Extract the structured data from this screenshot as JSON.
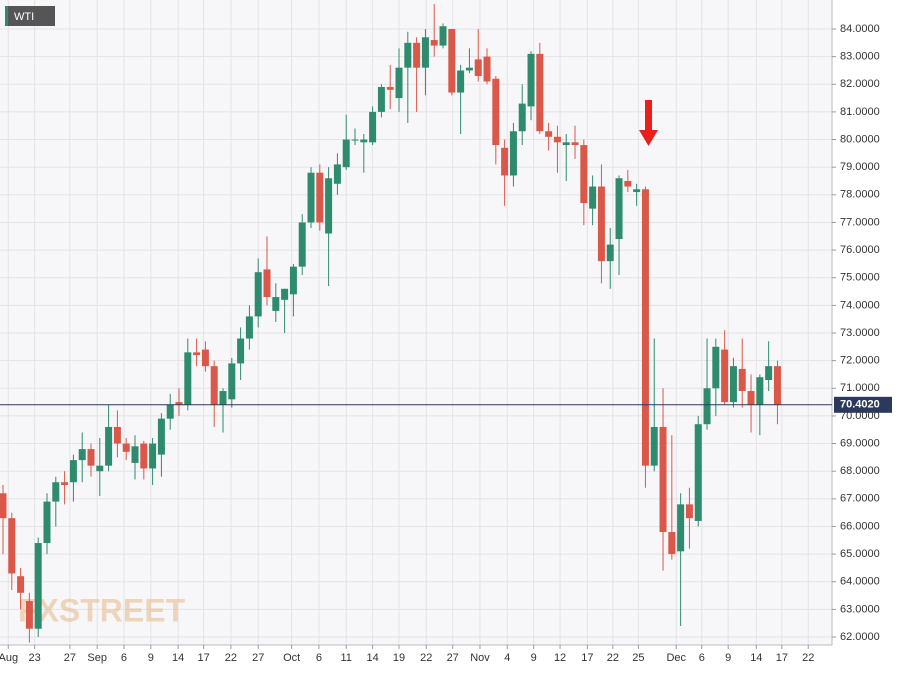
{
  "chart_data": {
    "type": "candlestick",
    "title": "WTI",
    "watermark": "FXSTREET",
    "up_color": "#2e8b6e",
    "down_color": "#d9584a",
    "series": {
      "open": [
        67.2,
        66.3,
        64.2,
        63.3,
        62.3,
        65.4,
        66.9,
        67.6,
        67.6,
        68.4,
        68.8,
        68.0,
        68.2,
        69.6,
        69.0,
        68.3,
        69.0,
        68.1,
        68.6,
        69.9,
        70.5,
        70.4,
        72.3,
        72.4,
        71.8,
        70.4,
        70.6,
        71.9,
        72.8,
        73.6,
        75.3,
        73.8,
        74.2,
        74.4,
        75.4,
        77.0,
        78.8,
        76.6,
        78.4,
        79.0,
        80.0,
        79.9,
        79.9,
        81.0,
        81.9,
        81.5,
        82.6,
        83.5,
        82.6,
        83.6,
        83.4,
        84.0,
        81.7,
        82.5,
        82.9,
        83.0,
        82.2,
        79.7,
        78.7,
        80.3,
        81.2,
        83.1,
        80.3,
        80.1,
        79.8,
        79.9,
        79.8,
        77.5,
        78.3,
        75.6,
        76.4,
        78.5,
        78.1,
        78.2,
        68.2,
        69.6,
        65.8,
        65.1,
        66.8,
        66.2,
        69.7,
        71.0,
        72.4,
        70.5,
        71.7,
        70.9,
        70.4,
        71.3,
        71.8
      ],
      "high": [
        67.5,
        66.5,
        64.5,
        63.6,
        65.6,
        67.2,
        67.8,
        68.0,
        68.6,
        69.4,
        69.0,
        69.2,
        70.4,
        70.2,
        69.2,
        69.3,
        69.1,
        69.2,
        70.1,
        70.8,
        71.0,
        72.8,
        72.8,
        72.7,
        72.0,
        71.0,
        72.1,
        73.2,
        74.0,
        75.7,
        76.5,
        74.8,
        74.6,
        75.5,
        77.3,
        79.0,
        79.1,
        79.0,
        79.5,
        80.9,
        80.4,
        80.2,
        81.2,
        82.0,
        82.7,
        83.3,
        83.9,
        83.7,
        84.0,
        84.9,
        84.2,
        84.0,
        82.7,
        83.3,
        84.0,
        83.3,
        82.3,
        80.0,
        80.6,
        82.0,
        83.2,
        83.5,
        80.6,
        80.5,
        80.2,
        80.5,
        80.0,
        78.7,
        79.1,
        76.8,
        78.7,
        78.9,
        78.4,
        78.3,
        72.8,
        71.0,
        69.3,
        67.2,
        67.4,
        70.0,
        72.8,
        72.8,
        73.1,
        72.1,
        72.8,
        71.5,
        71.5,
        72.7,
        72.0
      ],
      "low": [
        65.0,
        63.7,
        63.0,
        61.8,
        62.0,
        65.0,
        66.0,
        66.8,
        66.9,
        67.6,
        67.8,
        67.1,
        68.0,
        68.5,
        68.4,
        67.7,
        67.7,
        67.5,
        67.8,
        69.5,
        70.0,
        70.2,
        71.8,
        71.6,
        69.6,
        69.4,
        70.3,
        71.3,
        72.4,
        73.2,
        74.0,
        73.4,
        73.0,
        73.6,
        75.1,
        76.8,
        76.7,
        74.7,
        78.0,
        78.9,
        79.8,
        78.8,
        79.8,
        80.8,
        81.1,
        81.0,
        80.6,
        81.0,
        81.6,
        83.0,
        83.3,
        81.6,
        80.2,
        82.4,
        82.1,
        82.0,
        79.1,
        77.6,
        78.3,
        79.8,
        80.7,
        80.2,
        79.6,
        78.8,
        78.5,
        79.3,
        76.9,
        76.9,
        74.8,
        74.6,
        75.1,
        78.1,
        77.6,
        67.4,
        68.0,
        64.4,
        64.8,
        62.4,
        65.2,
        66.0,
        69.5,
        70.0,
        70.4,
        70.3,
        70.3,
        69.4,
        69.3,
        70.9,
        69.7
      ],
      "close": [
        66.3,
        64.3,
        63.6,
        62.3,
        65.4,
        66.9,
        67.6,
        67.5,
        68.4,
        68.8,
        68.2,
        68.2,
        69.6,
        69.0,
        68.7,
        68.9,
        68.1,
        69.0,
        69.9,
        70.4,
        70.4,
        72.3,
        72.2,
        71.8,
        70.4,
        70.9,
        71.9,
        72.8,
        73.6,
        75.2,
        74.3,
        74.3,
        74.6,
        75.4,
        77.0,
        78.8,
        77.0,
        78.6,
        79.1,
        80.0,
        80.0,
        80.0,
        81.0,
        81.9,
        81.8,
        82.6,
        83.5,
        82.6,
        83.7,
        83.4,
        84.1,
        81.7,
        82.5,
        82.6,
        82.3,
        82.1,
        79.8,
        78.7,
        80.3,
        81.3,
        83.1,
        80.3,
        80.1,
        79.9,
        79.9,
        79.8,
        77.7,
        78.3,
        75.6,
        76.2,
        78.6,
        78.3,
        78.2,
        68.2,
        69.6,
        65.8,
        65.0,
        66.8,
        66.3,
        69.7,
        71.0,
        72.5,
        70.5,
        71.8,
        70.9,
        70.4,
        71.4,
        71.8,
        70.4
      ]
    },
    "last_price": {
      "value": 70.402,
      "label": "70.4020"
    },
    "ylim": [
      61.711,
      85.049
    ],
    "yticks": [
      {
        "value": 62,
        "label": "62.0000"
      },
      {
        "value": 63,
        "label": "63.0000"
      },
      {
        "value": 64,
        "label": "64.0000"
      },
      {
        "value": 65,
        "label": "65.0000"
      },
      {
        "value": 66,
        "label": "66.0000"
      },
      {
        "value": 67,
        "label": "67.0000"
      },
      {
        "value": 68,
        "label": "68.0000"
      },
      {
        "value": 69,
        "label": "69.0000"
      },
      {
        "value": 70,
        "label": "70.0000"
      },
      {
        "value": 71,
        "label": "71.0000"
      },
      {
        "value": 72,
        "label": "72.0000"
      },
      {
        "value": 73,
        "label": "73.0000"
      },
      {
        "value": 74,
        "label": "74.0000"
      },
      {
        "value": 75,
        "label": "75.0000"
      },
      {
        "value": 76,
        "label": "76.0000"
      },
      {
        "value": 77,
        "label": "77.0000"
      },
      {
        "value": 78,
        "label": "78.0000"
      },
      {
        "value": 79,
        "label": "79.0000"
      },
      {
        "value": 80,
        "label": "80.0000"
      },
      {
        "value": 81,
        "label": "81.0000"
      },
      {
        "value": 82,
        "label": "82.0000"
      },
      {
        "value": 83,
        "label": "83.0000"
      },
      {
        "value": 84,
        "label": "84.0000"
      }
    ],
    "xlim": [
      -0.34,
      94.2
    ],
    "xticks": [
      {
        "value": 0.6,
        "label": "Aug"
      },
      {
        "value": 3.6,
        "label": "23"
      },
      {
        "value": 7.6,
        "label": "27"
      },
      {
        "value": 10.7,
        "label": "Sep"
      },
      {
        "value": 13.75,
        "label": "6"
      },
      {
        "value": 16.8,
        "label": "9"
      },
      {
        "value": 19.9,
        "label": "14"
      },
      {
        "value": 22.8,
        "label": "17"
      },
      {
        "value": 25.9,
        "label": "22"
      },
      {
        "value": 29,
        "label": "27"
      },
      {
        "value": 32.8,
        "label": "Oct"
      },
      {
        "value": 35.9,
        "label": "6"
      },
      {
        "value": 39,
        "label": "11"
      },
      {
        "value": 42,
        "label": "14"
      },
      {
        "value": 45,
        "label": "19"
      },
      {
        "value": 48.1,
        "label": "22"
      },
      {
        "value": 51.1,
        "label": "27"
      },
      {
        "value": 54.2,
        "label": "Nov"
      },
      {
        "value": 57.3,
        "label": "4"
      },
      {
        "value": 60.3,
        "label": "9"
      },
      {
        "value": 63.3,
        "label": "12"
      },
      {
        "value": 66.4,
        "label": "17"
      },
      {
        "value": 69.3,
        "label": "22"
      },
      {
        "value": 72.2,
        "label": "25"
      },
      {
        "value": 76.5,
        "label": "Dec"
      },
      {
        "value": 79.4,
        "label": "6"
      },
      {
        "value": 82.4,
        "label": "9"
      },
      {
        "value": 85.6,
        "label": "14"
      },
      {
        "value": 88.5,
        "label": "17"
      },
      {
        "value": 91.5,
        "label": "22"
      }
    ],
    "grid": true
  }
}
